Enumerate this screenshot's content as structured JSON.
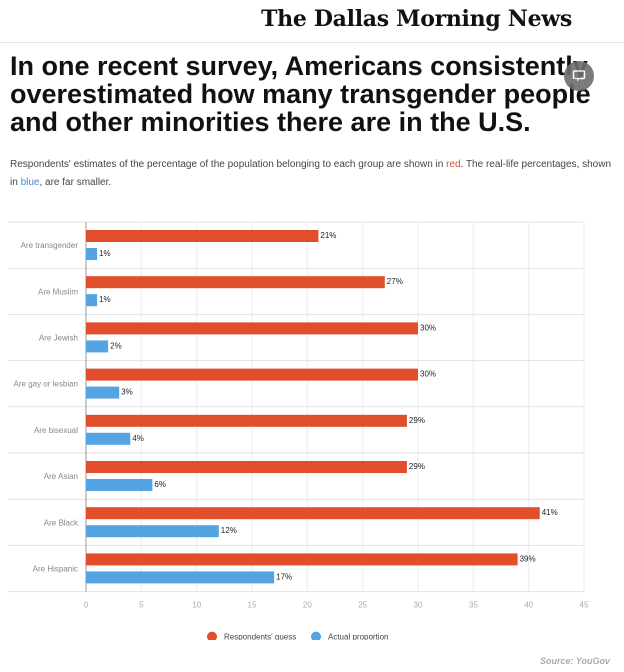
{
  "masthead": {
    "logo_text": "The Dallas Morning News"
  },
  "headline": "In one recent survey, Americans consistently overestimated how many transgender people and other minorities there are in the U.S.",
  "comment_badge": {
    "icon": "comment-icon"
  },
  "subtitle": {
    "part1": "Respondents' estimates of the percentage of the population belonging to each group are shown in ",
    "red_word": "red",
    "part2": ". The real-life percentages, shown in ",
    "blue_word": "blue",
    "part3": ", are far smaller."
  },
  "source": "Source: YouGov",
  "colors": {
    "guess": "#e04e2b",
    "actual": "#53a4e0"
  },
  "chart_data": {
    "type": "bar",
    "orientation": "horizontal",
    "categories": [
      "Are transgender",
      "Are Muslim",
      "Are Jewish",
      "Are gay or lesbian",
      "Are bisexual",
      "Are Asian",
      "Are Black",
      "Are Hispanic"
    ],
    "series": [
      {
        "name": "Respondents' guess",
        "values": [
          21,
          27,
          30,
          30,
          29,
          29,
          41,
          39
        ]
      },
      {
        "name": "Actual proportion",
        "values": [
          1,
          1,
          2,
          3,
          4,
          6,
          12,
          17
        ]
      }
    ],
    "value_suffix": "%",
    "xlim": [
      0,
      45
    ],
    "xticks": [
      0,
      5,
      10,
      15,
      20,
      25,
      30,
      35,
      40,
      45
    ],
    "grid": true,
    "legend_position": "bottom-center"
  }
}
